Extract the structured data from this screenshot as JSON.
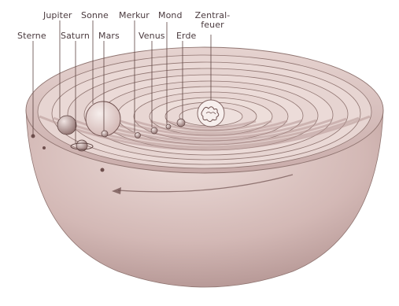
{
  "labels": {
    "sterne": "Sterne",
    "jupiter": "Jupiter",
    "saturn": "Saturn",
    "sonne": "Sonne",
    "mars": "Mars",
    "merkur": "Merkur",
    "mond": "Mond",
    "venus": "Venus",
    "erde": "Erde",
    "zentralfeuer_line1": "Zentral-",
    "zentralfeuer_line2": "feuer"
  },
  "colors": {
    "bowl_light": "#e9d8d5",
    "bowl_mid": "#cdb0ad",
    "bowl_dark": "#9d7c7a",
    "ring": "#8f7470",
    "label": "#4a3a3e"
  }
}
